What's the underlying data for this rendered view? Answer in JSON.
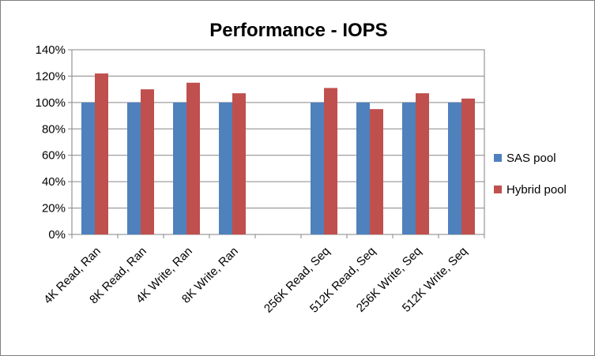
{
  "chart_data": {
    "type": "bar",
    "title": "Performance - IOPS",
    "xlabel": "",
    "ylabel": "",
    "ylim": [
      0,
      1.4
    ],
    "yticks": [
      "0%",
      "20%",
      "40%",
      "60%",
      "80%",
      "100%",
      "120%",
      "140%"
    ],
    "grid": true,
    "legend_position": "right",
    "categories": [
      "4K Read, Ran",
      "8K Read, Ran",
      "4K Write, Ran",
      "8K Write, Ran",
      "",
      "256K Read, Seq",
      "512K Read, Seq",
      "256K Write, Seq",
      "512K Write, Seq"
    ],
    "series": [
      {
        "name": "SAS pool",
        "color": "#4f81bd",
        "values": [
          1.0,
          1.0,
          1.0,
          1.0,
          null,
          1.0,
          1.0,
          1.0,
          1.0
        ]
      },
      {
        "name": "Hybrid pool",
        "color": "#c0504d",
        "values": [
          1.22,
          1.1,
          1.15,
          1.07,
          null,
          1.11,
          0.95,
          1.07,
          1.03
        ]
      }
    ]
  }
}
